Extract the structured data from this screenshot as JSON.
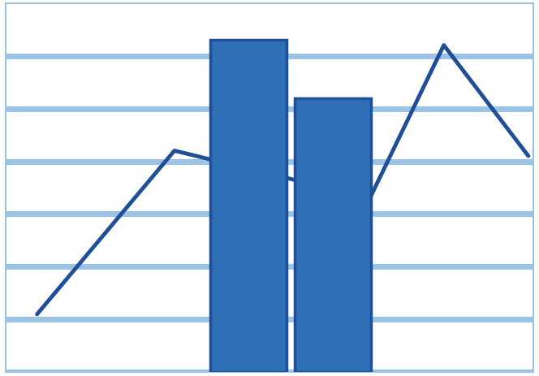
{
  "chart_data": {
    "type": "bar",
    "series": [
      {
        "type": "bar",
        "color": "#2f6fb5",
        "x": [
          4.6,
          6.2
        ],
        "values": [
          6.3,
          5.2
        ]
      },
      {
        "type": "line",
        "color": "#1f4f96",
        "x": [
          0.6,
          3.2,
          6.9,
          8.3,
          9.9
        ],
        "values": [
          1.1,
          4.2,
          3.3,
          6.2,
          4.1
        ]
      }
    ],
    "xlim": [
      0,
      10
    ],
    "xticks": [],
    "ylim": [
      0,
      7
    ],
    "yticks": [
      0,
      1,
      2,
      3,
      4,
      5,
      6
    ],
    "grid": true,
    "tick_labels": false
  }
}
